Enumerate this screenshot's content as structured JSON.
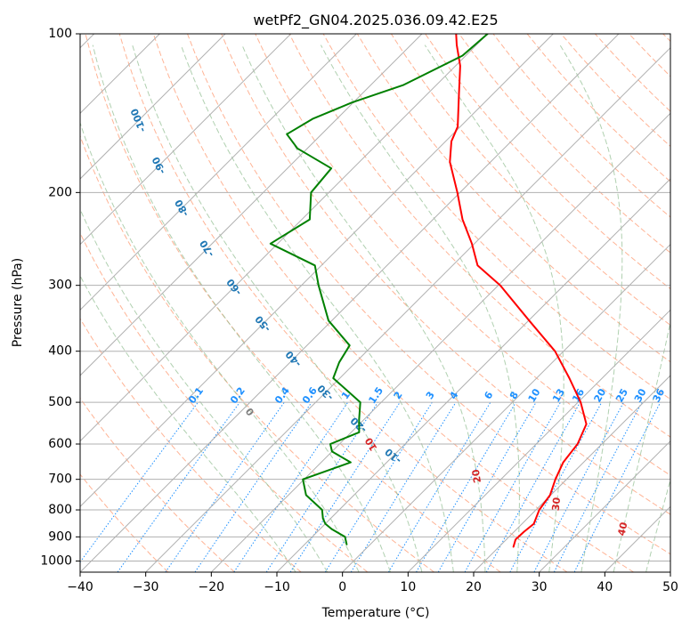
{
  "chart_data": {
    "type": "line",
    "chart_kind": "skew-T log-P diagram",
    "title": "wetPf2_GN04.2025.036.09.42.E25",
    "xlabel": "Temperature (°C)",
    "ylabel": "Pressure (hPa)",
    "xlim": [
      -40,
      50
    ],
    "ylim": [
      1050,
      100
    ],
    "y_scale": "log",
    "grid": true,
    "x_ticks": [
      "−40",
      "−30",
      "−20",
      "−10",
      "0",
      "10",
      "20",
      "30",
      "40",
      "50"
    ],
    "y_ticks": [
      "100",
      "200",
      "300",
      "400",
      "500",
      "600",
      "700",
      "800",
      "900",
      "1000"
    ],
    "dry_adiabat_labels": [
      "-100",
      "-90",
      "-80",
      "-70",
      "-60",
      "-50",
      "-40",
      "-30",
      "-20",
      "-10"
    ],
    "moist_adiabat_labels": [
      "0",
      "10",
      "20",
      "30",
      "40"
    ],
    "mixing_ratio_labels": [
      "0.1",
      "0.2",
      "0.4",
      "0.6",
      "1",
      "1.5",
      "2",
      "3",
      "4",
      "6",
      "8",
      "10",
      "13",
      "16",
      "20",
      "25",
      "30",
      "36"
    ],
    "colors": {
      "temperature": "#ff0000",
      "dewpoint": "#008000",
      "isotherms": "#b0b0b0",
      "isobars": "#b0b0b0",
      "dry_adiabats": "#ffa07a",
      "moist_adiabats": "#8fbc8f",
      "mixing_ratio": "#1e90ff",
      "dry_adiabat_label": "#1f77b4",
      "moist_adiabat_label": "#d62728"
    },
    "series": [
      {
        "kind": "temperature",
        "points": [
          {
            "p": 940,
            "t": 22.2
          },
          {
            "p": 910,
            "t": 21.4
          },
          {
            "p": 880,
            "t": 21.5
          },
          {
            "p": 850,
            "t": 21.8
          },
          {
            "p": 800,
            "t": 20.5
          },
          {
            "p": 750,
            "t": 19.9
          },
          {
            "p": 700,
            "t": 18.3
          },
          {
            "p": 650,
            "t": 16.9
          },
          {
            "p": 600,
            "t": 16.3
          },
          {
            "p": 550,
            "t": 14.6
          },
          {
            "p": 500,
            "t": 10.4
          },
          {
            "p": 450,
            "t": 5.0
          },
          {
            "p": 400,
            "t": -1.3
          },
          {
            "p": 350,
            "t": -9.9
          },
          {
            "p": 300,
            "t": -19.7
          },
          {
            "p": 275,
            "t": -26.2
          },
          {
            "p": 250,
            "t": -30.4
          },
          {
            "p": 225,
            "t": -35.5
          },
          {
            "p": 200,
            "t": -40.4
          },
          {
            "p": 175,
            "t": -46.2
          },
          {
            "p": 160,
            "t": -49.1
          },
          {
            "p": 150,
            "t": -50.4
          },
          {
            "p": 130,
            "t": -55.2
          },
          {
            "p": 115,
            "t": -59.3
          },
          {
            "p": 105,
            "t": -63.0
          },
          {
            "p": 100,
            "t": -64.8
          }
        ]
      },
      {
        "kind": "dewpoint",
        "points": [
          {
            "p": 930,
            "t": -3.6
          },
          {
            "p": 900,
            "t": -5.0
          },
          {
            "p": 870,
            "t": -8.2
          },
          {
            "p": 850,
            "t": -10.0
          },
          {
            "p": 830,
            "t": -11.2
          },
          {
            "p": 800,
            "t": -12.6
          },
          {
            "p": 750,
            "t": -17.3
          },
          {
            "p": 700,
            "t": -20.2
          },
          {
            "p": 650,
            "t": -15.5
          },
          {
            "p": 620,
            "t": -20.0
          },
          {
            "p": 600,
            "t": -21.4
          },
          {
            "p": 570,
            "t": -18.8
          },
          {
            "p": 540,
            "t": -20.7
          },
          {
            "p": 500,
            "t": -23.2
          },
          {
            "p": 450,
            "t": -31.0
          },
          {
            "p": 420,
            "t": -32.5
          },
          {
            "p": 390,
            "t": -33.5
          },
          {
            "p": 350,
            "t": -40.5
          },
          {
            "p": 300,
            "t": -47.4
          },
          {
            "p": 275,
            "t": -51.0
          },
          {
            "p": 250,
            "t": -61.1
          },
          {
            "p": 225,
            "t": -58.8
          },
          {
            "p": 200,
            "t": -62.7
          },
          {
            "p": 180,
            "t": -63.3
          },
          {
            "p": 165,
            "t": -71.5
          },
          {
            "p": 155,
            "t": -75.3
          },
          {
            "p": 145,
            "t": -73.7
          },
          {
            "p": 135,
            "t": -70.2
          },
          {
            "p": 125,
            "t": -65.0
          },
          {
            "p": 110,
            "t": -60.5
          },
          {
            "p": 100,
            "t": -60.0
          }
        ]
      }
    ]
  }
}
